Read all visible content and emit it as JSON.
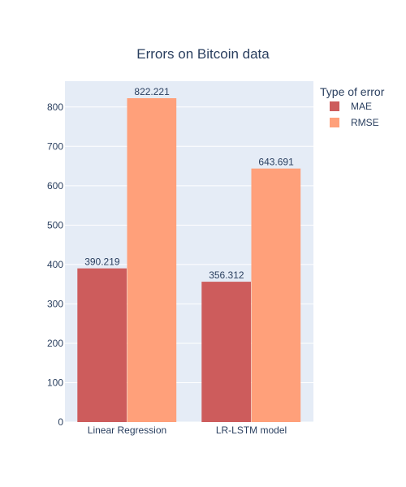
{
  "chart_data": {
    "type": "bar",
    "title": "Errors on Bitcoin data",
    "xlabel": "",
    "ylabel": "",
    "categories": [
      "Linear Regression",
      "LR-LSTM model"
    ],
    "series": [
      {
        "name": "MAE",
        "values": [
          390.219,
          356.312
        ],
        "labels": [
          "390.219",
          "356.312"
        ],
        "color": "#cd5c5c"
      },
      {
        "name": "RMSE",
        "values": [
          822.221,
          643.691
        ],
        "labels": [
          "822.221",
          "643.691"
        ],
        "color": "#ffa07a"
      }
    ],
    "ylim": [
      0,
      865.5
    ],
    "yticks": [
      "0",
      "100",
      "200",
      "300",
      "400",
      "500",
      "600",
      "700",
      "800"
    ],
    "grid": true,
    "plot_background": "#e5ecf6",
    "legend": {
      "title": "Type of error",
      "placement": "top-right"
    }
  }
}
